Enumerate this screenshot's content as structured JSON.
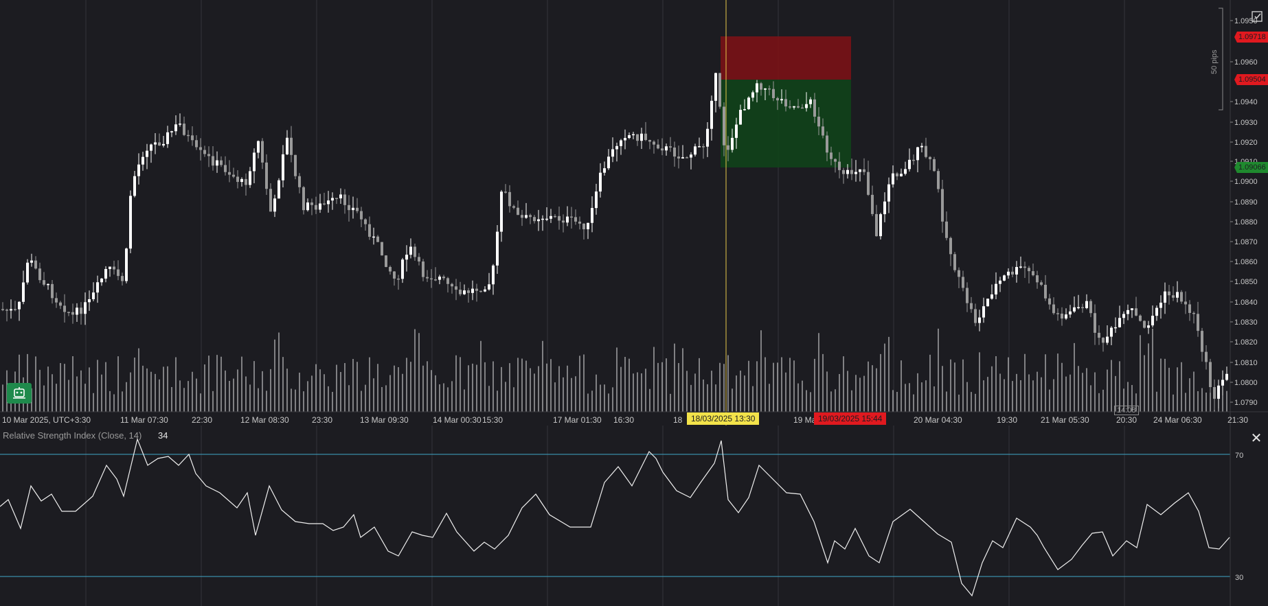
{
  "chart": {
    "price_axis_labels": [
      "1.0950",
      "1.0960",
      "1.0940",
      "1.0930",
      "1.0920",
      "1.0910",
      "1.0900",
      "1.0890",
      "1.0880",
      "1.0870",
      "1.0860",
      "1.0850",
      "1.0840",
      "1.0830",
      "1.0820",
      "1.0810",
      "1.0800",
      "1.0790"
    ],
    "time_axis_labels": [
      "10 Mar 2025, UTC+3:30",
      "11 Mar 07:30",
      "22:30",
      "12 Mar 08:30",
      "23:30",
      "13 Mar 09:30",
      "14 Mar 00:30",
      "15:30",
      "17 Mar 01:30",
      "16:30",
      "18",
      "19 Ma",
      "20 Mar 04:30",
      "19:30",
      "21 Mar 05:30",
      "20:30",
      "24 Mar 06:30",
      "21:30"
    ],
    "stop_loss_price": "1.09718",
    "entry_price": "1.09504",
    "take_profit_price": "1.09066",
    "crosshair_time": "18/03/2025 13:30",
    "exit_time": "19/03/2025 15:44",
    "ruler_label": "50 pips",
    "small_time_label": "14:08",
    "colors": {
      "background": "#1c1c21",
      "bull_candle": "#ffffff",
      "bear_candle": "#9a9a9a",
      "stop_zone": "#7a1216",
      "profit_zone": "#11421a",
      "crosshair": "#e8c84a",
      "rsi_levels": "#3fa9c9"
    }
  },
  "rsi": {
    "title": "Relative Strength Index (Close, 14)",
    "current_value": "34",
    "level_high": "70",
    "level_low": "30"
  },
  "icons": {
    "close": "close-icon",
    "edit": "edit-icon",
    "bot": "trading-bot-icon"
  }
}
